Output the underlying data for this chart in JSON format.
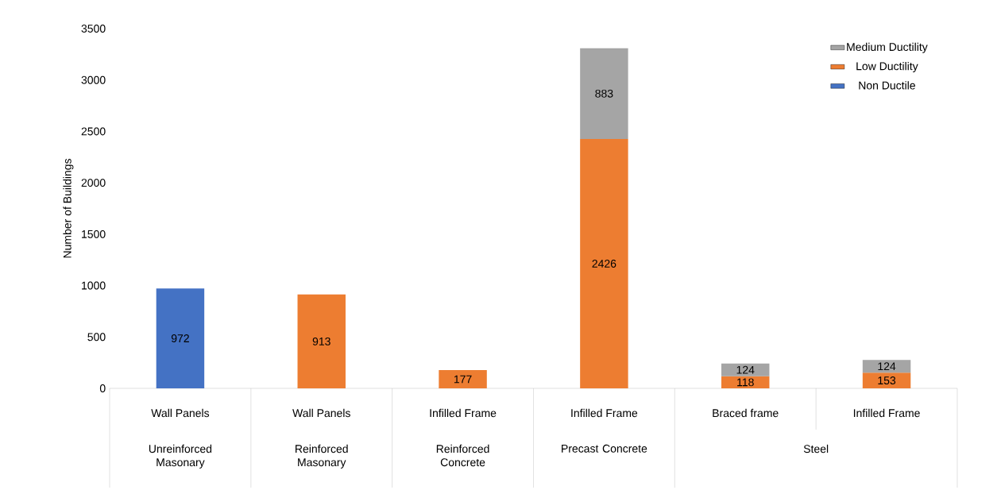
{
  "chart_data": {
    "type": "bar",
    "stacked": true,
    "ylabel": "Number of Buildings",
    "categories": [
      "Wall Panels",
      "Wall Panels",
      "Infilled Frame",
      "Infilled Frame",
      "Braced frame",
      "Infilled Frame"
    ],
    "annotations": [
      "Unreinforced Masonary",
      "Reinforced Masonary",
      "Reinforced Concrete",
      "Precast Concrete",
      "Steel"
    ],
    "series": [
      {
        "name": "Non Ductile",
        "color": "#4472c4",
        "values": [
          972,
          null,
          null,
          null,
          null,
          null
        ]
      },
      {
        "name": "Low Ductility",
        "color": "#ed7d31",
        "values": [
          null,
          913,
          177,
          2426,
          118,
          153
        ]
      },
      {
        "name": "Medium Ductility",
        "color": "#a5a5a5",
        "values": [
          null,
          null,
          null,
          883,
          124,
          124
        ]
      }
    ],
    "ylim": [
      0,
      3500
    ],
    "yticks": [
      0,
      500,
      1000,
      1500,
      2000,
      2500,
      3000,
      3500
    ],
    "data_labels": true,
    "legend": "top right"
  }
}
